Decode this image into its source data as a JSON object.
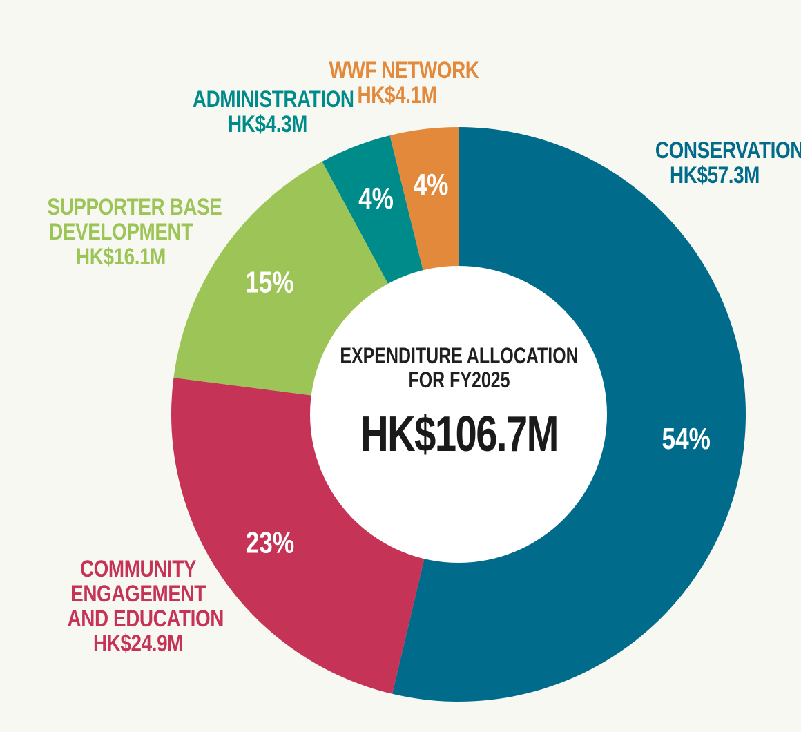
{
  "chart_data": {
    "type": "pie",
    "title": "EXPENDITURE ALLOCATION FOR FY2025",
    "total": "HK$106.7M",
    "slices": [
      {
        "name": "CONSERVATION",
        "amount_label": "HK$57.3M",
        "amount": 57.3,
        "percent": 54,
        "percent_label": "54%",
        "color": "#006b8a"
      },
      {
        "name": "COMMUNITY ENGAGEMENT AND EDUCATION",
        "name_lines": [
          "COMMUNITY",
          "ENGAGEMENT",
          "AND EDUCATION"
        ],
        "amount_label": "HK$24.9M",
        "amount": 24.9,
        "percent": 23,
        "percent_label": "23%",
        "color": "#c53457"
      },
      {
        "name": "SUPPORTER BASE DEVELOPMENT",
        "name_lines": [
          "SUPPORTER BASE",
          "DEVELOPMENT"
        ],
        "amount_label": "HK$16.1M",
        "amount": 16.1,
        "percent": 15,
        "percent_label": "15%",
        "color": "#9dc456"
      },
      {
        "name": "ADMINISTRATION",
        "amount_label": "HK$4.3M",
        "amount": 4.3,
        "percent": 4,
        "percent_label": "4%",
        "color": "#008b8b"
      },
      {
        "name": "WWF NETWORK",
        "amount_label": "HK$4.1M",
        "amount": 4.1,
        "percent": 4,
        "percent_label": "4%",
        "color": "#e3893b"
      }
    ]
  },
  "labels": {
    "conservation": {
      "lines": [
        "CONSERVATION",
        "HK$57.3M"
      ]
    },
    "community": {
      "lines": [
        "COMMUNITY",
        "ENGAGEMENT",
        "AND EDUCATION",
        "HK$24.9M"
      ]
    },
    "supporter": {
      "lines": [
        "SUPPORTER BASE",
        "DEVELOPMENT",
        "HK$16.1M"
      ]
    },
    "administration": {
      "lines": [
        "ADMINISTRATION",
        "HK$4.3M"
      ]
    },
    "wwf_network": {
      "lines": [
        "WWF NETWORK",
        "HK$4.1M"
      ]
    }
  }
}
